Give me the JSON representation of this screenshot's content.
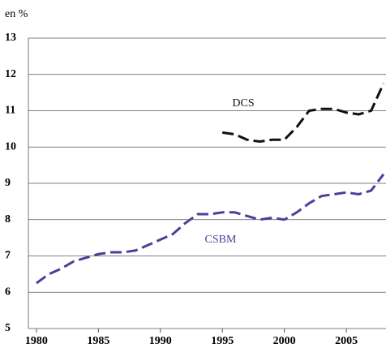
{
  "chart_data": {
    "type": "line",
    "y_label": "en %",
    "x": [
      1980,
      1981,
      1982,
      1983,
      1984,
      1985,
      1986,
      1987,
      1988,
      1989,
      1990,
      1991,
      1992,
      1993,
      1994,
      1995,
      1996,
      1997,
      1998,
      1999,
      2000,
      2001,
      2002,
      2003,
      2004,
      2005,
      2006,
      2007,
      2008
    ],
    "series": [
      {
        "name": "DCS",
        "color": "#111111",
        "values": [
          null,
          null,
          null,
          null,
          null,
          null,
          null,
          null,
          null,
          null,
          null,
          null,
          null,
          null,
          null,
          10.4,
          10.35,
          10.2,
          10.15,
          10.2,
          10.2,
          10.55,
          11.0,
          11.05,
          11.05,
          10.95,
          10.9,
          11.0,
          11.75
        ]
      },
      {
        "name": "CSBM",
        "color": "#4b3f9a",
        "values": [
          6.25,
          6.5,
          6.65,
          6.85,
          6.95,
          7.05,
          7.1,
          7.1,
          7.15,
          7.3,
          7.45,
          7.6,
          7.9,
          8.15,
          8.15,
          8.2,
          8.2,
          8.1,
          8.0,
          8.05,
          8.0,
          8.2,
          8.45,
          8.65,
          8.7,
          8.75,
          8.7,
          8.8,
          9.25
        ]
      }
    ],
    "xlim": [
      1979.35,
      2008.2
    ],
    "xticks": [
      1980,
      1985,
      1990,
      1995,
      2000,
      2005
    ],
    "ylim": [
      5,
      13
    ],
    "yticks": [
      5,
      6,
      7,
      8,
      9,
      10,
      11,
      12,
      13
    ],
    "grid": true
  }
}
